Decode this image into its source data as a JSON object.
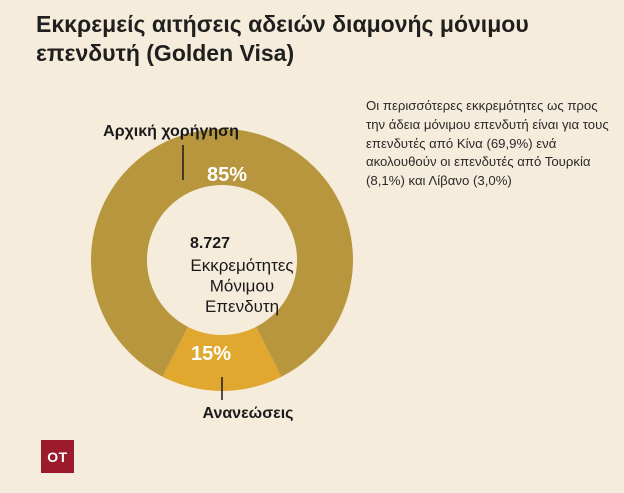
{
  "title": "Εκκρεμείς αιτήσεις αδειών διαμονής μόνιμου επενδυτή (Golden Visa)",
  "note": "Οι περισσότερες εκκρεμότητες ως προς την άδεια μόνιμου επενδυτή είναι για τους επενδυτές από Κίνα (69,9%) ενά ακολουθούν οι επενδυτές από Τουρκία (8,1%) και Λίβανο (3,0%)",
  "logo": "OT",
  "colors": {
    "background": "#f6ecdc",
    "initial": "#b8963e",
    "renewal": "#e0a82e",
    "logo": "#9b1b2d"
  },
  "chart_data": {
    "type": "pie",
    "donut": true,
    "title": "",
    "center": {
      "value": "8.727",
      "label_lines": [
        "Εκκρεμότητες",
        "Μόνιμου",
        "Επενδυτη"
      ]
    },
    "categories": [
      "Αρχική χορήγηση",
      "Ανανεώσεις"
    ],
    "values": [
      85,
      15
    ],
    "data_labels": [
      "85%",
      "15%"
    ]
  }
}
